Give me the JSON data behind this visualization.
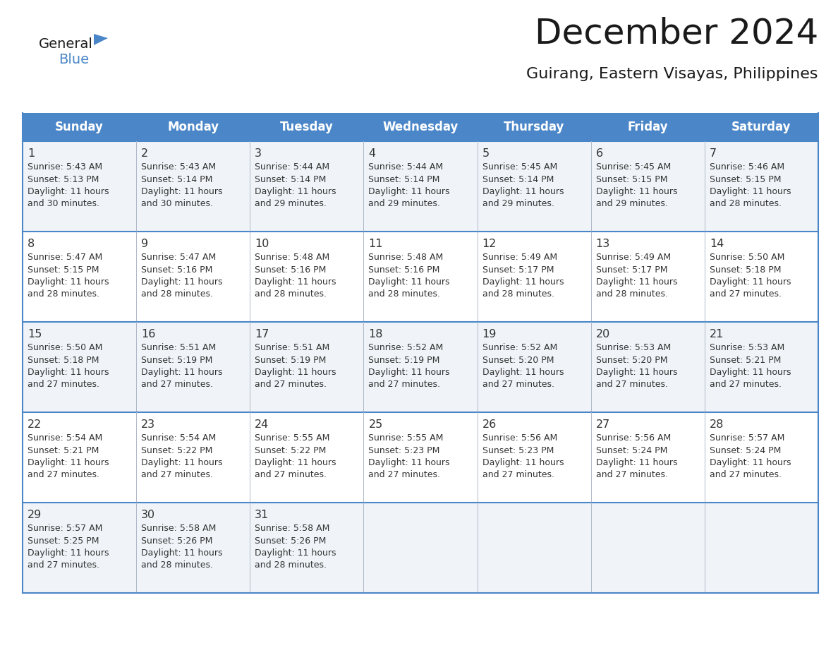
{
  "title": "December 2024",
  "subtitle": "Guirang, Eastern Visayas, Philippines",
  "header_color": "#4a86c8",
  "header_text_color": "#ffffff",
  "cell_bg_even": "#f0f4f8",
  "cell_bg_odd": "#ffffff",
  "border_color": "#4a86c8",
  "text_color": "#333333",
  "days_of_week": [
    "Sunday",
    "Monday",
    "Tuesday",
    "Wednesday",
    "Thursday",
    "Friday",
    "Saturday"
  ],
  "calendar": [
    [
      {
        "day": "1",
        "sunrise": "5:43 AM",
        "sunset": "5:13 PM",
        "daylight": "11 hours and 30 minutes."
      },
      {
        "day": "2",
        "sunrise": "5:43 AM",
        "sunset": "5:14 PM",
        "daylight": "11 hours and 30 minutes."
      },
      {
        "day": "3",
        "sunrise": "5:44 AM",
        "sunset": "5:14 PM",
        "daylight": "11 hours and 29 minutes."
      },
      {
        "day": "4",
        "sunrise": "5:44 AM",
        "sunset": "5:14 PM",
        "daylight": "11 hours and 29 minutes."
      },
      {
        "day": "5",
        "sunrise": "5:45 AM",
        "sunset": "5:14 PM",
        "daylight": "11 hours and 29 minutes."
      },
      {
        "day": "6",
        "sunrise": "5:45 AM",
        "sunset": "5:15 PM",
        "daylight": "11 hours and 29 minutes."
      },
      {
        "day": "7",
        "sunrise": "5:46 AM",
        "sunset": "5:15 PM",
        "daylight": "11 hours and 28 minutes."
      }
    ],
    [
      {
        "day": "8",
        "sunrise": "5:47 AM",
        "sunset": "5:15 PM",
        "daylight": "11 hours and 28 minutes."
      },
      {
        "day": "9",
        "sunrise": "5:47 AM",
        "sunset": "5:16 PM",
        "daylight": "11 hours and 28 minutes."
      },
      {
        "day": "10",
        "sunrise": "5:48 AM",
        "sunset": "5:16 PM",
        "daylight": "11 hours and 28 minutes."
      },
      {
        "day": "11",
        "sunrise": "5:48 AM",
        "sunset": "5:16 PM",
        "daylight": "11 hours and 28 minutes."
      },
      {
        "day": "12",
        "sunrise": "5:49 AM",
        "sunset": "5:17 PM",
        "daylight": "11 hours and 28 minutes."
      },
      {
        "day": "13",
        "sunrise": "5:49 AM",
        "sunset": "5:17 PM",
        "daylight": "11 hours and 28 minutes."
      },
      {
        "day": "14",
        "sunrise": "5:50 AM",
        "sunset": "5:18 PM",
        "daylight": "11 hours and 27 minutes."
      }
    ],
    [
      {
        "day": "15",
        "sunrise": "5:50 AM",
        "sunset": "5:18 PM",
        "daylight": "11 hours and 27 minutes."
      },
      {
        "day": "16",
        "sunrise": "5:51 AM",
        "sunset": "5:19 PM",
        "daylight": "11 hours and 27 minutes."
      },
      {
        "day": "17",
        "sunrise": "5:51 AM",
        "sunset": "5:19 PM",
        "daylight": "11 hours and 27 minutes."
      },
      {
        "day": "18",
        "sunrise": "5:52 AM",
        "sunset": "5:19 PM",
        "daylight": "11 hours and 27 minutes."
      },
      {
        "day": "19",
        "sunrise": "5:52 AM",
        "sunset": "5:20 PM",
        "daylight": "11 hours and 27 minutes."
      },
      {
        "day": "20",
        "sunrise": "5:53 AM",
        "sunset": "5:20 PM",
        "daylight": "11 hours and 27 minutes."
      },
      {
        "day": "21",
        "sunrise": "5:53 AM",
        "sunset": "5:21 PM",
        "daylight": "11 hours and 27 minutes."
      }
    ],
    [
      {
        "day": "22",
        "sunrise": "5:54 AM",
        "sunset": "5:21 PM",
        "daylight": "11 hours and 27 minutes."
      },
      {
        "day": "23",
        "sunrise": "5:54 AM",
        "sunset": "5:22 PM",
        "daylight": "11 hours and 27 minutes."
      },
      {
        "day": "24",
        "sunrise": "5:55 AM",
        "sunset": "5:22 PM",
        "daylight": "11 hours and 27 minutes."
      },
      {
        "day": "25",
        "sunrise": "5:55 AM",
        "sunset": "5:23 PM",
        "daylight": "11 hours and 27 minutes."
      },
      {
        "day": "26",
        "sunrise": "5:56 AM",
        "sunset": "5:23 PM",
        "daylight": "11 hours and 27 minutes."
      },
      {
        "day": "27",
        "sunrise": "5:56 AM",
        "sunset": "5:24 PM",
        "daylight": "11 hours and 27 minutes."
      },
      {
        "day": "28",
        "sunrise": "5:57 AM",
        "sunset": "5:24 PM",
        "daylight": "11 hours and 27 minutes."
      }
    ],
    [
      {
        "day": "29",
        "sunrise": "5:57 AM",
        "sunset": "5:25 PM",
        "daylight": "11 hours and 27 minutes."
      },
      {
        "day": "30",
        "sunrise": "5:58 AM",
        "sunset": "5:26 PM",
        "daylight": "11 hours and 28 minutes."
      },
      {
        "day": "31",
        "sunrise": "5:58 AM",
        "sunset": "5:26 PM",
        "daylight": "11 hours and 28 minutes."
      },
      null,
      null,
      null,
      null
    ]
  ],
  "logo_triangle_color": "#4a86c8",
  "logo_blue_color": "#4a86c8",
  "logo_general_color": "#1a1a1a"
}
